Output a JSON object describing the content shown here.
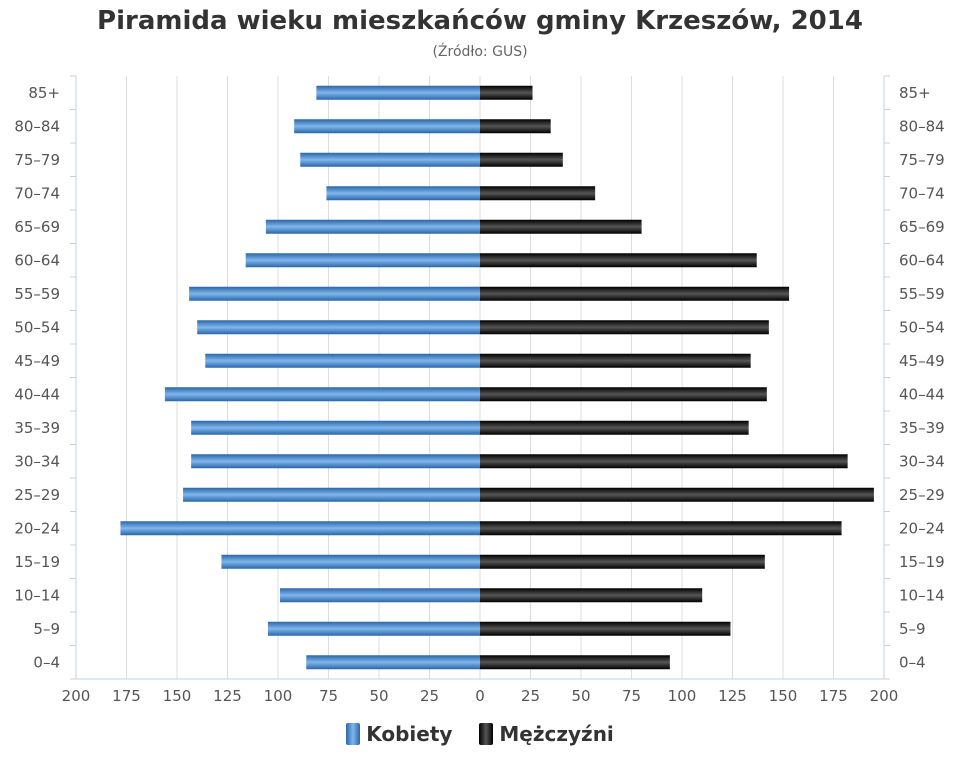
{
  "chart_data": {
    "type": "bar",
    "orientation": "horizontal-population-pyramid",
    "title": "Piramida wieku mieszkańców gminy Krzeszów, 2014",
    "subtitle": "(Źródło: GUS)",
    "categories": [
      "85+",
      "80–84",
      "75–79",
      "70–74",
      "65–69",
      "60–64",
      "55–59",
      "50–54",
      "45–49",
      "40–44",
      "35–39",
      "30–34",
      "25–29",
      "20–24",
      "15–19",
      "10–14",
      "5–9",
      "0–4"
    ],
    "series": [
      {
        "name": "Kobiety",
        "color": "#4a8fd4",
        "values": [
          81,
          92,
          89,
          76,
          106,
          116,
          144,
          140,
          136,
          156,
          143,
          143,
          147,
          178,
          128,
          99,
          105,
          86
        ]
      },
      {
        "name": "Mężczyźni",
        "color": "#111111",
        "values": [
          26,
          35,
          41,
          57,
          80,
          137,
          153,
          143,
          134,
          142,
          133,
          182,
          195,
          179,
          141,
          110,
          124,
          94
        ]
      }
    ],
    "xlim": [
      -200,
      200
    ],
    "x_ticks": [
      -200,
      -175,
      -150,
      -125,
      -100,
      -75,
      -50,
      -25,
      0,
      25,
      50,
      75,
      100,
      125,
      150,
      175,
      200
    ],
    "x_tick_labels": [
      "200",
      "175",
      "150",
      "125",
      "100",
      "75",
      "50",
      "25",
      "0",
      "25",
      "50",
      "75",
      "100",
      "125",
      "150",
      "175",
      "200"
    ],
    "grid": true,
    "legend_position": "bottom-center"
  }
}
